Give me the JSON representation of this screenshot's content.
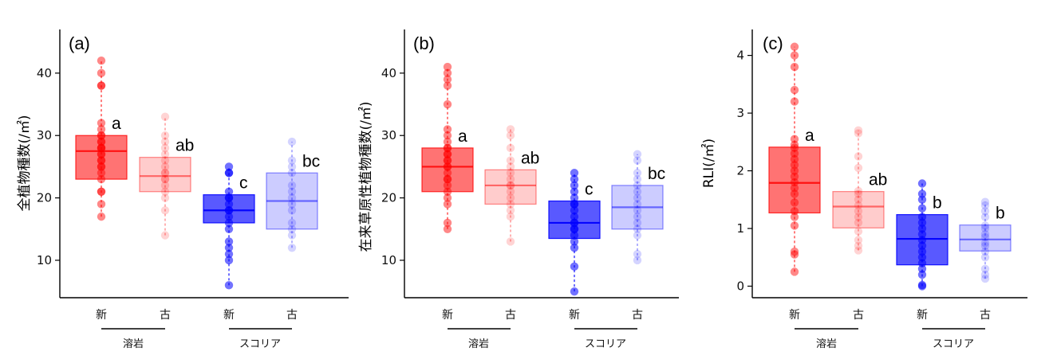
{
  "chart_data": [
    {
      "type": "box",
      "panel_label": "(a)",
      "ylabel": "全植物種数(/㎡)",
      "ylim": [
        4,
        47
      ],
      "yticks": [
        10,
        20,
        30,
        40
      ],
      "categories": [
        "新",
        "古",
        "新",
        "古"
      ],
      "groups": [
        {
          "label": "溶岩",
          "categories": [
            0,
            1
          ]
        },
        {
          "label": "スコリア",
          "categories": [
            2,
            3
          ]
        }
      ],
      "boxes": [
        {
          "color": "#ff0000",
          "alpha": 0.55,
          "q1": 23,
          "median": 27.5,
          "q3": 30,
          "whisker_low": 17,
          "whisker_high": 42,
          "sig": "a",
          "points": [
            17,
            19,
            21,
            21,
            23,
            24,
            25,
            25,
            26,
            26,
            27,
            27,
            28,
            28,
            28,
            29,
            29,
            30,
            30,
            31,
            32,
            38,
            38,
            40,
            42
          ]
        },
        {
          "color": "#ff0000",
          "alpha": 0.2,
          "q1": 21,
          "median": 23.5,
          "q3": 26.5,
          "whisker_low": 14,
          "whisker_high": 33,
          "sig": "ab",
          "points": [
            14,
            18,
            20,
            21,
            22,
            23,
            23,
            24,
            24,
            25,
            26,
            27,
            28,
            29,
            30,
            33
          ]
        },
        {
          "color": "#0000ff",
          "alpha": 0.65,
          "q1": 16,
          "median": 18,
          "q3": 20.5,
          "whisker_low": 6,
          "whisker_high": 25,
          "sig": "c",
          "points": [
            6,
            10,
            11,
            12,
            13,
            15,
            16,
            17,
            18,
            18,
            19,
            20,
            20,
            21,
            24,
            24,
            25
          ]
        },
        {
          "color": "#0000ff",
          "alpha": 0.2,
          "q1": 15,
          "median": 19.5,
          "q3": 24,
          "whisker_low": 12,
          "whisker_high": 29,
          "sig": "bc",
          "points": [
            12,
            14,
            15,
            16,
            18,
            19,
            20,
            21,
            22,
            24,
            25,
            26,
            29
          ]
        }
      ]
    },
    {
      "type": "box",
      "panel_label": "(b)",
      "ylabel": "在来草原性植物種数(/㎡)",
      "ylim": [
        4,
        47
      ],
      "yticks": [
        10,
        20,
        30,
        40
      ],
      "categories": [
        "新",
        "古",
        "新",
        "古"
      ],
      "groups": [
        {
          "label": "溶岩",
          "categories": [
            0,
            1
          ]
        },
        {
          "label": "スコリア",
          "categories": [
            2,
            3
          ]
        }
      ],
      "boxes": [
        {
          "color": "#ff0000",
          "alpha": 0.55,
          "q1": 21,
          "median": 25,
          "q3": 28,
          "whisker_low": 15,
          "whisker_high": 41,
          "sig": "a",
          "points": [
            15,
            16,
            19,
            20,
            21,
            22,
            23,
            23,
            24,
            25,
            25,
            26,
            26,
            27,
            27,
            28,
            28,
            29,
            30,
            31,
            35,
            38,
            39,
            40,
            41
          ]
        },
        {
          "color": "#ff0000",
          "alpha": 0.2,
          "q1": 19,
          "median": 22,
          "q3": 24.5,
          "whisker_low": 13,
          "whisker_high": 31,
          "sig": "ab",
          "points": [
            13,
            17,
            18,
            19,
            20,
            21,
            22,
            22,
            23,
            24,
            25,
            26,
            28,
            30,
            31
          ]
        },
        {
          "color": "#0000ff",
          "alpha": 0.65,
          "q1": 13.5,
          "median": 16,
          "q3": 19.5,
          "whisker_low": 5,
          "whisker_high": 24,
          "sig": "c",
          "points": [
            5,
            9,
            12,
            13,
            14,
            15,
            15,
            16,
            16,
            17,
            18,
            19,
            19,
            20,
            21,
            22,
            23,
            24
          ]
        },
        {
          "color": "#0000ff",
          "alpha": 0.2,
          "q1": 15,
          "median": 18.5,
          "q3": 22,
          "whisker_low": 10,
          "whisker_high": 27,
          "sig": "bc",
          "points": [
            10,
            11,
            14,
            15,
            16,
            17,
            18,
            19,
            20,
            21,
            22,
            23,
            24,
            26,
            27
          ]
        }
      ]
    },
    {
      "type": "box",
      "panel_label": "(c)",
      "ylabel": "RLI(/㎡)",
      "ylim": [
        -0.2,
        4.45
      ],
      "yticks": [
        0,
        1,
        2,
        3,
        4
      ],
      "categories": [
        "新",
        "古",
        "新",
        "古"
      ],
      "groups": [
        {
          "label": "溶岩",
          "categories": [
            0,
            1
          ]
        },
        {
          "label": "スコリア",
          "categories": [
            2,
            3
          ]
        }
      ],
      "boxes": [
        {
          "color": "#ff0000",
          "alpha": 0.55,
          "q1": 1.27,
          "median": 1.79,
          "q3": 2.41,
          "whisker_low": 0.25,
          "whisker_high": 4.15,
          "sig": "a",
          "points": [
            0.25,
            0.55,
            0.6,
            1.05,
            1.2,
            1.3,
            1.45,
            1.6,
            1.7,
            1.8,
            1.9,
            2.0,
            2.1,
            2.2,
            2.3,
            2.4,
            2.45,
            2.55,
            3.2,
            3.4,
            3.8,
            4.0,
            4.15
          ]
        },
        {
          "color": "#ff0000",
          "alpha": 0.2,
          "q1": 1.01,
          "median": 1.38,
          "q3": 1.64,
          "whisker_low": 0.62,
          "whisker_high": 2.7,
          "sig": "ab",
          "points": [
            0.62,
            0.7,
            0.8,
            0.95,
            1.1,
            1.2,
            1.3,
            1.4,
            1.5,
            1.6,
            1.65,
            2.05,
            2.25,
            2.65,
            2.7
          ]
        },
        {
          "color": "#0000ff",
          "alpha": 0.65,
          "q1": 0.37,
          "median": 0.82,
          "q3": 1.24,
          "whisker_low": 0.0,
          "whisker_high": 1.78,
          "sig": "b",
          "points": [
            0.0,
            0.02,
            0.2,
            0.3,
            0.4,
            0.5,
            0.6,
            0.7,
            0.8,
            0.9,
            1.0,
            1.1,
            1.2,
            1.35,
            1.5,
            1.6,
            1.78
          ]
        },
        {
          "color": "#0000ff",
          "alpha": 0.2,
          "q1": 0.61,
          "median": 0.81,
          "q3": 1.06,
          "whisker_low": 0.13,
          "whisker_high": 1.46,
          "sig": "b",
          "points": [
            0.13,
            0.2,
            0.3,
            0.5,
            0.6,
            0.7,
            0.75,
            0.85,
            0.9,
            1.0,
            1.05,
            1.2,
            1.3,
            1.4,
            1.46
          ]
        }
      ]
    }
  ]
}
